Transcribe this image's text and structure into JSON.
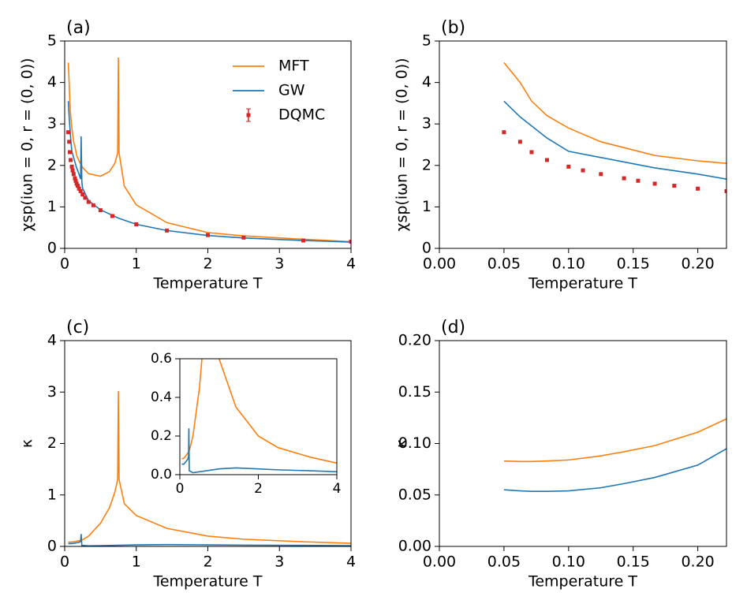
{
  "chart_data": [
    {
      "type": "line",
      "title": "(a)",
      "xlabel": "Temperature T",
      "ylabel": "χsp(iωn = 0, r = (0, 0))",
      "xlim": [
        0,
        4
      ],
      "ylim": [
        0,
        5
      ],
      "xticks": [
        0,
        1,
        2,
        3,
        4
      ],
      "yticks": [
        0,
        1,
        2,
        3,
        4,
        5
      ],
      "legend": "upper right",
      "series": [
        {
          "name": "MFT",
          "color": "#ff7f0e",
          "type": "line",
          "x": [
            0.05,
            0.0625,
            0.0714,
            0.0833,
            0.1,
            0.125,
            0.1429,
            0.1667,
            0.2,
            0.25,
            0.3333,
            0.5,
            0.625,
            0.7,
            0.74,
            0.75,
            0.76,
            0.8333,
            1.0,
            1.4286,
            2.0,
            2.5,
            3.3333,
            4.0
          ],
          "values": [
            4.48,
            4.0,
            3.55,
            3.2,
            2.9,
            2.57,
            2.46,
            2.24,
            2.11,
            1.95,
            1.8,
            1.74,
            1.85,
            2.05,
            2.3,
            4.6,
            2.3,
            1.5,
            1.05,
            0.62,
            0.38,
            0.3,
            0.22,
            0.16
          ]
        },
        {
          "name": "GW",
          "color": "#1f77b4",
          "type": "line",
          "x": [
            0.05,
            0.0625,
            0.0833,
            0.1,
            0.125,
            0.1667,
            0.2,
            0.2222,
            0.23,
            0.24,
            0.25,
            0.3333,
            0.5,
            0.75,
            1.0,
            1.4286,
            2.0,
            2.5,
            3.3333,
            4.0
          ],
          "values": [
            3.55,
            3.17,
            2.66,
            2.34,
            2.19,
            1.94,
            1.79,
            1.67,
            2.7,
            1.6,
            1.45,
            1.15,
            0.93,
            0.73,
            0.58,
            0.43,
            0.31,
            0.25,
            0.19,
            0.15
          ]
        },
        {
          "name": "DQMC",
          "color": "#d62728",
          "type": "scatter",
          "x": [
            0.05,
            0.0625,
            0.0714,
            0.0833,
            0.1,
            0.1111,
            0.125,
            0.1429,
            0.1538,
            0.1667,
            0.1818,
            0.2,
            0.2222,
            0.25,
            0.2857,
            0.3333,
            0.4,
            0.5,
            0.6667,
            1.0,
            1.4286,
            2.0,
            2.5,
            3.3333,
            4.0
          ],
          "values": [
            2.8,
            2.57,
            2.32,
            2.13,
            1.97,
            1.88,
            1.79,
            1.69,
            1.63,
            1.56,
            1.51,
            1.44,
            1.38,
            1.3,
            1.22,
            1.12,
            1.04,
            0.92,
            0.78,
            0.58,
            0.43,
            0.32,
            0.26,
            0.19,
            0.16
          ]
        }
      ]
    },
    {
      "type": "line",
      "title": "(b)",
      "xlabel": "Temperature T",
      "ylabel": "χsp(iωn = 0, r = (0, 0))",
      "xlim": [
        0,
        0.2222
      ],
      "ylim": [
        0,
        5
      ],
      "xticks": [
        {
          "value": 0,
          "label": "0.00"
        },
        {
          "value": 0.05,
          "label": "0.05"
        },
        {
          "value": 0.1,
          "label": "0.10"
        },
        {
          "value": 0.15,
          "label": "0.15"
        },
        {
          "value": 0.2,
          "label": "0.20"
        }
      ],
      "yticks": [
        0,
        1,
        2,
        3,
        4,
        5
      ],
      "series": [
        {
          "name": "MFT",
          "color": "#ff7f0e",
          "type": "line",
          "x": [
            0.05,
            0.0625,
            0.0714,
            0.0833,
            0.1,
            0.125,
            0.1667,
            0.2,
            0.2222
          ],
          "values": [
            4.48,
            4.0,
            3.55,
            3.2,
            2.9,
            2.57,
            2.24,
            2.11,
            2.05
          ]
        },
        {
          "name": "GW",
          "color": "#1f77b4",
          "type": "line",
          "x": [
            0.05,
            0.0625,
            0.0833,
            0.1,
            0.125,
            0.1667,
            0.2,
            0.2222
          ],
          "values": [
            3.55,
            3.17,
            2.66,
            2.34,
            2.19,
            1.94,
            1.79,
            1.67
          ]
        },
        {
          "name": "DQMC",
          "color": "#d62728",
          "type": "scatter",
          "x": [
            0.05,
            0.0625,
            0.0714,
            0.0833,
            0.1,
            0.1111,
            0.125,
            0.1429,
            0.1538,
            0.1667,
            0.1818,
            0.2,
            0.2222
          ],
          "values": [
            2.8,
            2.57,
            2.32,
            2.13,
            1.97,
            1.88,
            1.79,
            1.69,
            1.63,
            1.56,
            1.51,
            1.44,
            1.38
          ]
        }
      ]
    },
    {
      "type": "line",
      "title": "(c)",
      "xlabel": "Temperature T",
      "ylabel": "κ",
      "xlim": [
        0,
        4
      ],
      "ylim": [
        0,
        4
      ],
      "xticks": [
        0,
        1,
        2,
        3,
        4
      ],
      "yticks": [
        0,
        1,
        2,
        3,
        4
      ],
      "series": [
        {
          "name": "MFT",
          "color": "#ff7f0e",
          "type": "line",
          "x": [
            0.05,
            0.1,
            0.2,
            0.25,
            0.3333,
            0.5,
            0.625,
            0.7,
            0.74,
            0.75,
            0.76,
            0.8333,
            1.0,
            1.4286,
            2.0,
            2.5,
            3.3333,
            4.0
          ],
          "values": [
            0.083,
            0.084,
            0.11,
            0.13,
            0.2,
            0.45,
            0.75,
            1.05,
            1.3,
            3.02,
            1.3,
            0.83,
            0.6,
            0.35,
            0.2,
            0.14,
            0.09,
            0.06
          ]
        },
        {
          "name": "GW",
          "color": "#1f77b4",
          "type": "line",
          "x": [
            0.05,
            0.1,
            0.2,
            0.2222,
            0.23,
            0.24,
            0.3333,
            0.5,
            1.0,
            1.4286,
            2.0,
            2.5,
            3.3333,
            4.0
          ],
          "values": [
            0.055,
            0.054,
            0.079,
            0.095,
            0.24,
            0.02,
            0.01,
            0.015,
            0.03,
            0.035,
            0.03,
            0.025,
            0.02,
            0.015
          ]
        }
      ],
      "inset": {
        "xlim": [
          0,
          4
        ],
        "ylim": [
          0,
          0.6
        ],
        "xticks": [
          0,
          2,
          4
        ],
        "yticks": [
          {
            "value": 0,
            "label": "0.0"
          },
          {
            "value": 0.2,
            "label": "0.2"
          },
          {
            "value": 0.4,
            "label": "0.4"
          },
          {
            "value": 0.6,
            "label": "0.6"
          }
        ]
      }
    },
    {
      "type": "line",
      "title": "(d)",
      "xlabel": "Temperature T",
      "ylabel": "κ",
      "xlim": [
        0,
        0.2222
      ],
      "ylim": [
        0,
        0.2
      ],
      "xticks": [
        {
          "value": 0,
          "label": "0.00"
        },
        {
          "value": 0.05,
          "label": "0.05"
        },
        {
          "value": 0.1,
          "label": "0.10"
        },
        {
          "value": 0.15,
          "label": "0.15"
        },
        {
          "value": 0.2,
          "label": "0.20"
        }
      ],
      "yticks": [
        {
          "value": 0,
          "label": "0.00"
        },
        {
          "value": 0.05,
          "label": "0.05"
        },
        {
          "value": 0.1,
          "label": "0.10"
        },
        {
          "value": 0.15,
          "label": "0.15"
        },
        {
          "value": 0.2,
          "label": "0.20"
        }
      ],
      "series": [
        {
          "name": "MFT",
          "color": "#ff7f0e",
          "type": "line",
          "x": [
            0.05,
            0.0625,
            0.0714,
            0.0833,
            0.1,
            0.125,
            0.1429,
            0.1667,
            0.2,
            0.2222
          ],
          "values": [
            0.083,
            0.0825,
            0.0825,
            0.083,
            0.084,
            0.088,
            0.092,
            0.098,
            0.111,
            0.124
          ]
        },
        {
          "name": "GW",
          "color": "#1f77b4",
          "type": "line",
          "x": [
            0.05,
            0.0625,
            0.0714,
            0.0833,
            0.1,
            0.125,
            0.1429,
            0.1667,
            0.2,
            0.2222
          ],
          "values": [
            0.055,
            0.054,
            0.0535,
            0.0535,
            0.054,
            0.057,
            0.061,
            0.067,
            0.079,
            0.095
          ]
        }
      ]
    }
  ]
}
